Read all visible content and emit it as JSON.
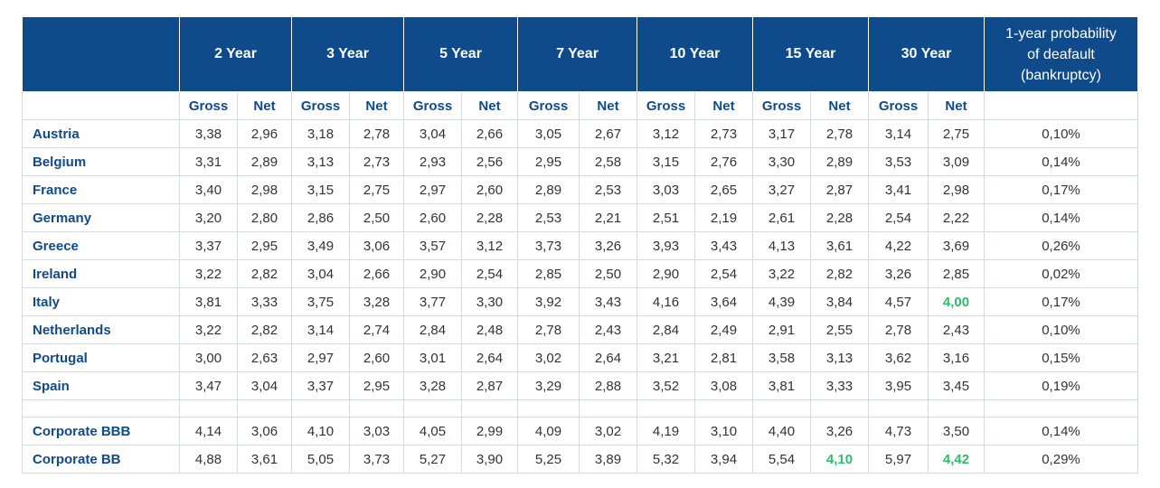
{
  "table": {
    "periods": [
      "2 Year",
      "3 Year",
      "5 Year",
      "7 Year",
      "10 Year",
      "15 Year",
      "30 Year"
    ],
    "prob_header": [
      "1-year probability",
      "of deafault",
      "(bankruptcy)"
    ],
    "gross_label": "Gross",
    "net_label": "Net",
    "rows": [
      {
        "name": "Austria",
        "values": [
          "3,38",
          "2,96",
          "3,18",
          "2,78",
          "3,04",
          "2,66",
          "3,05",
          "2,67",
          "3,12",
          "2,73",
          "3,17",
          "2,78",
          "3,14",
          "2,75"
        ],
        "prob": "0,10%"
      },
      {
        "name": "Belgium",
        "values": [
          "3,31",
          "2,89",
          "3,13",
          "2,73",
          "2,93",
          "2,56",
          "2,95",
          "2,58",
          "3,15",
          "2,76",
          "3,30",
          "2,89",
          "3,53",
          "3,09"
        ],
        "prob": "0,14%"
      },
      {
        "name": "France",
        "values": [
          "3,40",
          "2,98",
          "3,15",
          "2,75",
          "2,97",
          "2,60",
          "2,89",
          "2,53",
          "3,03",
          "2,65",
          "3,27",
          "2,87",
          "3,41",
          "2,98"
        ],
        "prob": "0,17%"
      },
      {
        "name": "Germany",
        "values": [
          "3,20",
          "2,80",
          "2,86",
          "2,50",
          "2,60",
          "2,28",
          "2,53",
          "2,21",
          "2,51",
          "2,19",
          "2,61",
          "2,28",
          "2,54",
          "2,22"
        ],
        "prob": "0,14%"
      },
      {
        "name": "Greece",
        "values": [
          "3,37",
          "2,95",
          "3,49",
          "3,06",
          "3,57",
          "3,12",
          "3,73",
          "3,26",
          "3,93",
          "3,43",
          "4,13",
          "3,61",
          "4,22",
          "3,69"
        ],
        "prob": "0,26%"
      },
      {
        "name": "Ireland",
        "values": [
          "3,22",
          "2,82",
          "3,04",
          "2,66",
          "2,90",
          "2,54",
          "2,85",
          "2,50",
          "2,90",
          "2,54",
          "3,22",
          "2,82",
          "3,26",
          "2,85"
        ],
        "prob": "0,02%"
      },
      {
        "name": "Italy",
        "values": [
          "3,81",
          "3,33",
          "3,75",
          "3,28",
          "3,77",
          "3,30",
          "3,92",
          "3,43",
          "4,16",
          "3,64",
          "4,39",
          "3,84",
          "4,57",
          "4,00"
        ],
        "prob": "0,17%",
        "highlight": [
          13
        ]
      },
      {
        "name": "Netherlands",
        "values": [
          "3,22",
          "2,82",
          "3,14",
          "2,74",
          "2,84",
          "2,48",
          "2,78",
          "2,43",
          "2,84",
          "2,49",
          "2,91",
          "2,55",
          "2,78",
          "2,43"
        ],
        "prob": "0,10%"
      },
      {
        "name": "Portugal",
        "values": [
          "3,00",
          "2,63",
          "2,97",
          "2,60",
          "3,01",
          "2,64",
          "3,02",
          "2,64",
          "3,21",
          "2,81",
          "3,58",
          "3,13",
          "3,62",
          "3,16"
        ],
        "prob": "0,15%"
      },
      {
        "name": "Spain",
        "values": [
          "3,47",
          "3,04",
          "3,37",
          "2,95",
          "3,28",
          "2,87",
          "3,29",
          "2,88",
          "3,52",
          "3,08",
          "3,81",
          "3,33",
          "3,95",
          "3,45"
        ],
        "prob": "0,19%"
      },
      {
        "spacer": true
      },
      {
        "name": "Corporate BBB",
        "values": [
          "4,14",
          "3,06",
          "4,10",
          "3,03",
          "4,05",
          "2,99",
          "4,09",
          "3,02",
          "4,19",
          "3,10",
          "4,40",
          "3,26",
          "4,73",
          "3,50"
        ],
        "prob": "0,14%"
      },
      {
        "name": "Corporate BB",
        "values": [
          "4,88",
          "3,61",
          "5,05",
          "3,73",
          "5,27",
          "3,90",
          "5,25",
          "3,89",
          "5,32",
          "3,94",
          "5,54",
          "4,10",
          "5,97",
          "4,42"
        ],
        "prob": "0,29%",
        "highlight": [
          11,
          13
        ]
      }
    ]
  }
}
